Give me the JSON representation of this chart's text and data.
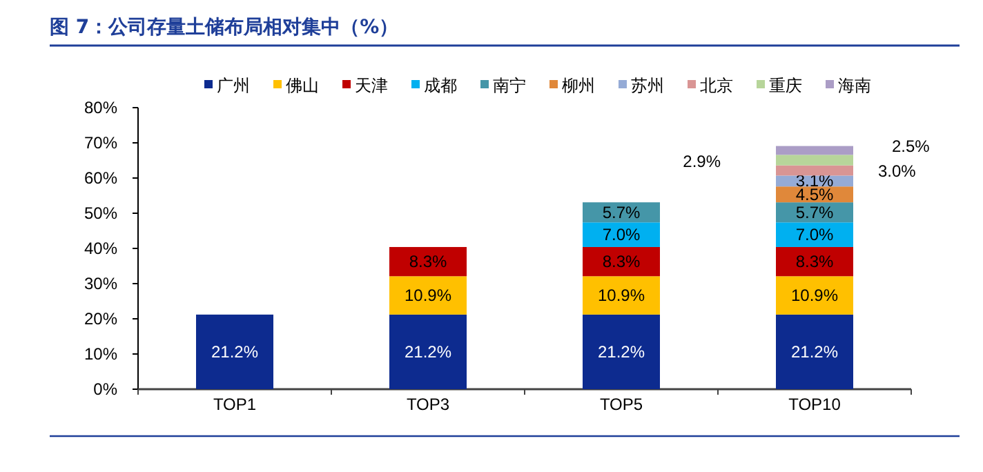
{
  "chart_data": {
    "type": "bar",
    "stacked": true,
    "title": "图 7：公司存量土储布局相对集中（%）",
    "categories": [
      "TOP1",
      "TOP3",
      "TOP5",
      "TOP10"
    ],
    "series": [
      {
        "name": "广州",
        "color": "#0d2b8f",
        "values": [
          21.2,
          21.2,
          21.2,
          21.2
        ],
        "value_labels": [
          "21.2%",
          "21.2%",
          "21.2%",
          "21.2%"
        ]
      },
      {
        "name": "佛山",
        "color": "#ffc000",
        "values": [
          null,
          10.9,
          10.9,
          10.9
        ],
        "value_labels": [
          null,
          "10.9%",
          "10.9%",
          "10.9%"
        ]
      },
      {
        "name": "天津",
        "color": "#c00000",
        "values": [
          null,
          8.3,
          8.3,
          8.3
        ],
        "value_labels": [
          null,
          "8.3%",
          "8.3%",
          "8.3%"
        ]
      },
      {
        "name": "成都",
        "color": "#00b0f0",
        "values": [
          null,
          null,
          7.0,
          7.0
        ],
        "value_labels": [
          null,
          null,
          "7.0%",
          "7.0%"
        ]
      },
      {
        "name": "南宁",
        "color": "#4596a8",
        "values": [
          null,
          null,
          5.7,
          5.7
        ],
        "value_labels": [
          null,
          null,
          "5.7%",
          "5.7%"
        ]
      },
      {
        "name": "柳州",
        "color": "#e0883a",
        "values": [
          null,
          null,
          null,
          4.5
        ],
        "value_labels": [
          null,
          null,
          null,
          "4.5%"
        ]
      },
      {
        "name": "苏州",
        "color": "#95abd6",
        "values": [
          null,
          null,
          null,
          3.1
        ],
        "value_labels": [
          null,
          null,
          null,
          "3.1%"
        ]
      },
      {
        "name": "北京",
        "color": "#d99594",
        "values": [
          null,
          null,
          null,
          2.9
        ]
      },
      {
        "name": "重庆",
        "color": "#b7d59a",
        "values": [
          null,
          null,
          null,
          3.0
        ]
      },
      {
        "name": "海南",
        "color": "#ab9dc6",
        "values": [
          null,
          null,
          null,
          2.5
        ]
      }
    ],
    "annotations": [
      "2.9%",
      "3.0%",
      "2.5%"
    ],
    "ylim": [
      0,
      80
    ],
    "yticks": [
      {
        "value": 0,
        "label": "0%"
      },
      {
        "value": 10,
        "label": "10%"
      },
      {
        "value": 20,
        "label": "20%"
      },
      {
        "value": 30,
        "label": "30%"
      },
      {
        "value": 40,
        "label": "40%"
      },
      {
        "value": 50,
        "label": "50%"
      },
      {
        "value": 60,
        "label": "60%"
      },
      {
        "value": 70,
        "label": "70%"
      },
      {
        "value": 80,
        "label": "80%"
      }
    ],
    "legend": "top"
  }
}
